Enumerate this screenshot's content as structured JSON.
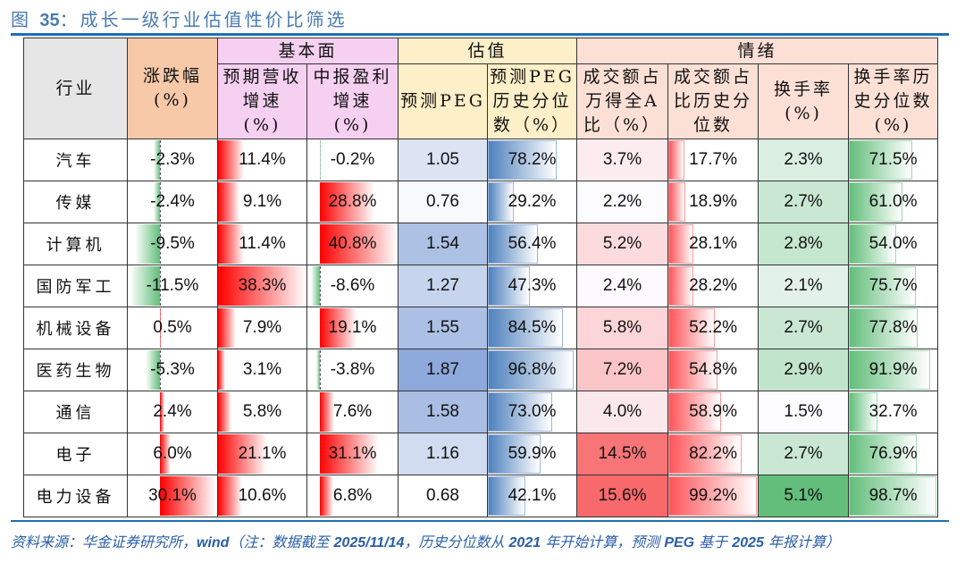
{
  "figure": {
    "label": "图",
    "number": "35",
    "title": "：成长一级行业估值性价比筛选"
  },
  "table": {
    "group_headers": {
      "fundamentals": "基本面",
      "valuation": "估值",
      "sentiment": "情绪"
    },
    "columns": [
      {
        "key": "industry",
        "label": "行业"
      },
      {
        "key": "change",
        "label": "涨跌幅\n(%)"
      },
      {
        "key": "rev_growth",
        "label": "预期营收\n增速\n(%)"
      },
      {
        "key": "profit_growth",
        "label": "中报盈利\n增速\n(%)"
      },
      {
        "key": "peg",
        "label": "预测PEG"
      },
      {
        "key": "peg_pct",
        "label": "预测PEG\n历史分位\n数（%）"
      },
      {
        "key": "turnover_share",
        "label": "成交额占\n万得全A\n比（%）"
      },
      {
        "key": "turnover_share_pct",
        "label": "成交额占\n比历史分\n位数"
      },
      {
        "key": "turnover_rate",
        "label": "换手率\n(%)"
      },
      {
        "key": "turnover_rate_pct",
        "label": "换手率历\n史分位数\n(%)"
      }
    ],
    "rows": [
      {
        "industry": "汽车",
        "change": "-2.3%",
        "rev_growth": "11.4%",
        "profit_growth": "-0.2%",
        "peg": "1.05",
        "peg_pct": "78.2%",
        "turnover_share": "3.7%",
        "turnover_share_pct": "17.7%",
        "turnover_rate": "2.3%",
        "turnover_rate_pct": "71.5%"
      },
      {
        "industry": "传媒",
        "change": "-2.4%",
        "rev_growth": "9.1%",
        "profit_growth": "28.8%",
        "peg": "0.76",
        "peg_pct": "29.2%",
        "turnover_share": "2.2%",
        "turnover_share_pct": "18.9%",
        "turnover_rate": "2.7%",
        "turnover_rate_pct": "61.0%"
      },
      {
        "industry": "计算机",
        "change": "-9.5%",
        "rev_growth": "11.4%",
        "profit_growth": "40.8%",
        "peg": "1.54",
        "peg_pct": "56.4%",
        "turnover_share": "5.2%",
        "turnover_share_pct": "28.1%",
        "turnover_rate": "2.8%",
        "turnover_rate_pct": "54.0%"
      },
      {
        "industry": "国防军工",
        "change": "-11.5%",
        "rev_growth": "38.3%",
        "profit_growth": "-8.6%",
        "peg": "1.27",
        "peg_pct": "47.3%",
        "turnover_share": "2.4%",
        "turnover_share_pct": "28.2%",
        "turnover_rate": "2.1%",
        "turnover_rate_pct": "75.7%"
      },
      {
        "industry": "机械设备",
        "change": "0.5%",
        "rev_growth": "7.9%",
        "profit_growth": "19.1%",
        "peg": "1.55",
        "peg_pct": "84.5%",
        "turnover_share": "5.8%",
        "turnover_share_pct": "52.2%",
        "turnover_rate": "2.7%",
        "turnover_rate_pct": "77.8%"
      },
      {
        "industry": "医药生物",
        "change": "-5.3%",
        "rev_growth": "3.1%",
        "profit_growth": "-3.8%",
        "peg": "1.87",
        "peg_pct": "96.8%",
        "turnover_share": "7.2%",
        "turnover_share_pct": "54.8%",
        "turnover_rate": "2.9%",
        "turnover_rate_pct": "91.9%"
      },
      {
        "industry": "通信",
        "change": "2.4%",
        "rev_growth": "5.8%",
        "profit_growth": "7.6%",
        "peg": "1.58",
        "peg_pct": "73.0%",
        "turnover_share": "4.0%",
        "turnover_share_pct": "58.9%",
        "turnover_rate": "1.5%",
        "turnover_rate_pct": "32.7%"
      },
      {
        "industry": "电子",
        "change": "6.0%",
        "rev_growth": "21.1%",
        "profit_growth": "31.1%",
        "peg": "1.16",
        "peg_pct": "59.9%",
        "turnover_share": "14.5%",
        "turnover_share_pct": "82.2%",
        "turnover_rate": "2.7%",
        "turnover_rate_pct": "76.9%"
      },
      {
        "industry": "电力设备",
        "change": "30.1%",
        "rev_growth": "10.6%",
        "profit_growth": "6.8%",
        "peg": "0.68",
        "peg_pct": "42.1%",
        "turnover_share": "15.6%",
        "turnover_share_pct": "99.2%",
        "turnover_rate": "5.1%",
        "turnover_rate_pct": "98.7%"
      }
    ]
  },
  "colors": {
    "title": "#4a7ab0",
    "rule": "#1f6fb6",
    "bar_red": "#ff0000",
    "bar_green": "#63be7b",
    "bar_blue": "#4f81bd",
    "bar_salmon": "#ff555a",
    "bar_green_light": "#63be7b"
  },
  "footnote": {
    "parts": [
      {
        "t": "资料来源：华金证券研究所，",
        "b": false
      },
      {
        "t": "wind",
        "b": true
      },
      {
        "t": "（注：数据截至 ",
        "b": false
      },
      {
        "t": "2025/11/14",
        "b": true
      },
      {
        "t": "，历史分位数从 ",
        "b": false
      },
      {
        "t": "2021",
        "b": true
      },
      {
        "t": " 年开始计算，预测 ",
        "b": false
      },
      {
        "t": "PEG",
        "b": true
      },
      {
        "t": " 基于 ",
        "b": false
      },
      {
        "t": "2025",
        "b": true
      },
      {
        "t": " 年报计算）",
        "b": false
      }
    ]
  }
}
